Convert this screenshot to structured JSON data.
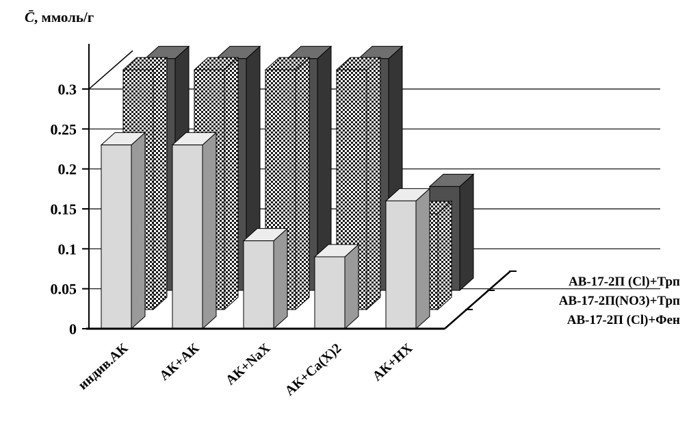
{
  "chart_data": {
    "type": "bar",
    "projection": "3d",
    "title": "",
    "ylabel_var": "C̄",
    "ylabel_unit": ", ммоль/г",
    "categories": [
      "индив.АК",
      "АК+АК",
      "АК+NaX",
      "АК+Ca(X)2",
      "АК+HX"
    ],
    "series": [
      {
        "name": "АВ-17-2П (Cl)+Трп",
        "style": "dark",
        "values": [
          0.29,
          0.29,
          0.29,
          0.29,
          0.13
        ]
      },
      {
        "name": "АВ-17-2П(NO3)+Трп",
        "style": "checker",
        "values": [
          0.3,
          0.3,
          0.3,
          0.3,
          0.12
        ]
      },
      {
        "name": "АВ-17-2П (Cl)+Фен",
        "style": "light",
        "values": [
          0.23,
          0.23,
          0.11,
          0.09,
          0.16
        ]
      }
    ],
    "depth_order": "first series is the back row, last series is the front row",
    "yticks": [
      0,
      0.05,
      0.1,
      0.15,
      0.2,
      0.25,
      0.3
    ],
    "ytick_labels": [
      "0",
      "0.05",
      "0.1",
      "0.15",
      "0.2",
      "0.25",
      "0.3"
    ],
    "ylim": [
      0,
      0.3
    ],
    "grid": true,
    "legend_position": "right",
    "colors": {
      "light_front": "#d9d9d9",
      "light_top": "#ededed",
      "light_side": "#9a9a9a",
      "dark_front": "#4f4f4f",
      "dark_top": "#6f6f6f",
      "dark_side": "#353535",
      "checker_fg": "#1a1a1a",
      "checker_bg": "#ffffff",
      "axis": "#000000"
    }
  }
}
